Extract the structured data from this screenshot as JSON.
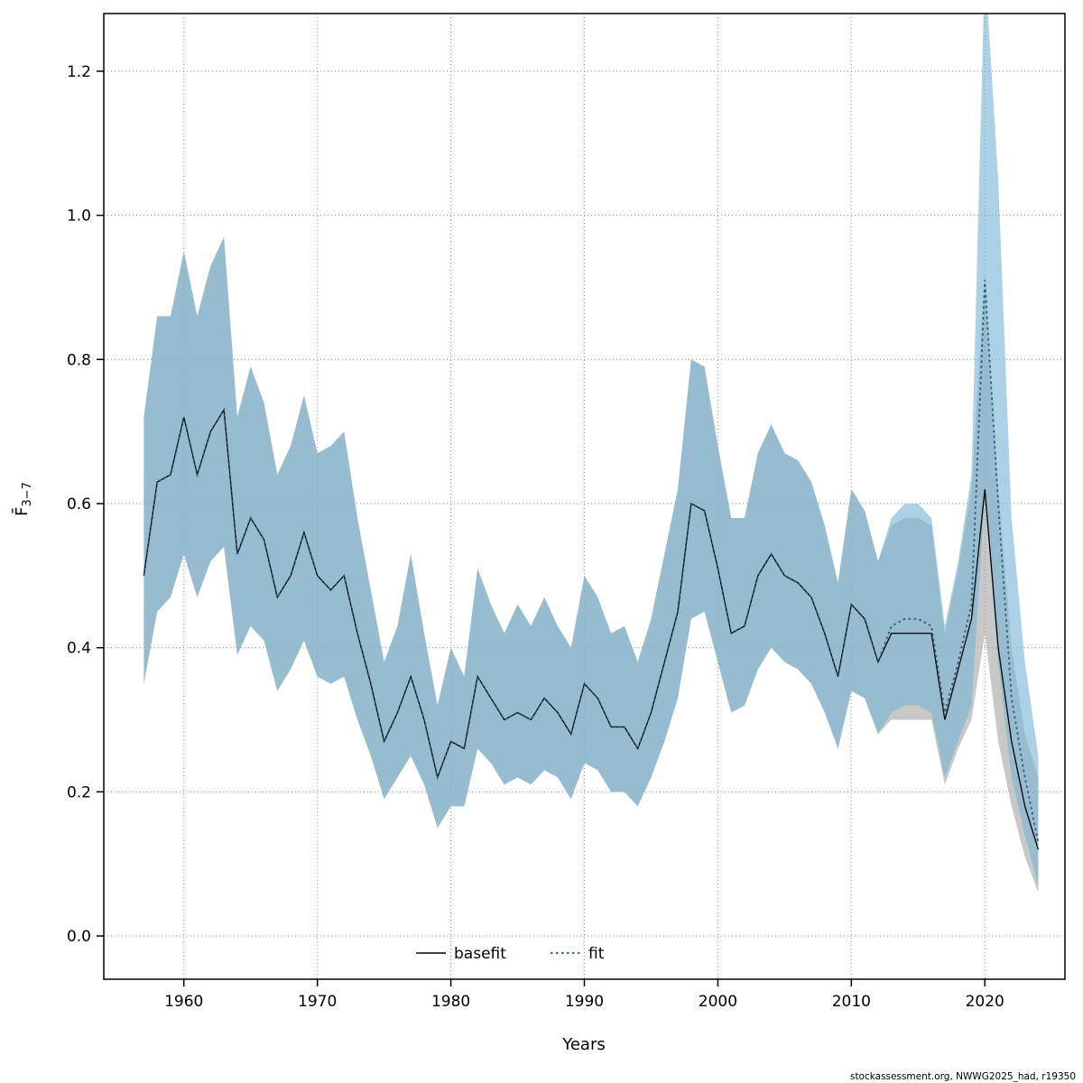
{
  "axes": {
    "xlabel": "Years",
    "ylabel_main": "F̄",
    "ylabel_sub": "3−7"
  },
  "legend": {
    "basefit_label": "basefit",
    "fit_label": "fit"
  },
  "footer": {
    "source": "stockassessment.org, NWWG2025_had, r19350"
  },
  "colors": {
    "fit_band": "#79b4d4",
    "base_band": "#9a9a9a",
    "fit_line": "#2a5876",
    "basefit_line": "#000000",
    "grid": "#8a8a8a",
    "box": "#000000"
  },
  "chart_data": {
    "type": "line",
    "title": "",
    "xlabel": "Years",
    "ylabel": "F_3-7 (mean fishing mortality ages 3-7)",
    "xlim": [
      1954,
      2026
    ],
    "ylim": [
      -0.06,
      1.28
    ],
    "xticks": [
      1960,
      1970,
      1980,
      1990,
      2000,
      2010,
      2020
    ],
    "yticks": [
      0.0,
      0.2,
      0.4,
      0.6,
      0.8,
      1.0,
      1.2
    ],
    "ytick_labels": [
      "0.0",
      "0.2",
      "0.4",
      "0.6",
      "0.8",
      "1.0",
      "1.2"
    ],
    "grid": true,
    "legend_position": "bottom-center-inside",
    "x": [
      1957,
      1958,
      1959,
      1960,
      1961,
      1962,
      1963,
      1964,
      1965,
      1966,
      1967,
      1968,
      1969,
      1970,
      1971,
      1972,
      1973,
      1974,
      1975,
      1976,
      1977,
      1978,
      1979,
      1980,
      1981,
      1982,
      1983,
      1984,
      1985,
      1986,
      1987,
      1988,
      1989,
      1990,
      1991,
      1992,
      1993,
      1994,
      1995,
      1996,
      1997,
      1998,
      1999,
      2000,
      2001,
      2002,
      2003,
      2004,
      2005,
      2006,
      2007,
      2008,
      2009,
      2010,
      2011,
      2012,
      2013,
      2014,
      2015,
      2016,
      2017,
      2018,
      2019,
      2020,
      2021,
      2022,
      2023,
      2024
    ],
    "series": [
      {
        "name": "fit",
        "style": "dotted",
        "values": [
          0.5,
          0.63,
          0.64,
          0.72,
          0.64,
          0.7,
          0.73,
          0.53,
          0.58,
          0.55,
          0.47,
          0.5,
          0.56,
          0.5,
          0.48,
          0.5,
          0.42,
          0.35,
          0.27,
          0.31,
          0.36,
          0.3,
          0.22,
          0.27,
          0.26,
          0.36,
          0.33,
          0.3,
          0.31,
          0.3,
          0.33,
          0.31,
          0.28,
          0.35,
          0.33,
          0.29,
          0.29,
          0.26,
          0.31,
          0.38,
          0.45,
          0.6,
          0.59,
          0.51,
          0.42,
          0.43,
          0.5,
          0.53,
          0.5,
          0.49,
          0.47,
          0.42,
          0.36,
          0.46,
          0.44,
          0.38,
          0.43,
          0.44,
          0.44,
          0.43,
          0.31,
          0.38,
          0.46,
          0.91,
          0.6,
          0.33,
          0.22,
          0.13
        ],
        "lower": [
          0.35,
          0.45,
          0.47,
          0.53,
          0.47,
          0.52,
          0.54,
          0.39,
          0.43,
          0.41,
          0.34,
          0.37,
          0.41,
          0.36,
          0.35,
          0.36,
          0.3,
          0.25,
          0.19,
          0.22,
          0.25,
          0.21,
          0.15,
          0.18,
          0.18,
          0.26,
          0.24,
          0.21,
          0.22,
          0.21,
          0.23,
          0.22,
          0.19,
          0.24,
          0.23,
          0.2,
          0.2,
          0.18,
          0.22,
          0.27,
          0.33,
          0.44,
          0.45,
          0.38,
          0.31,
          0.32,
          0.37,
          0.4,
          0.38,
          0.37,
          0.35,
          0.31,
          0.26,
          0.34,
          0.33,
          0.28,
          0.31,
          0.32,
          0.32,
          0.31,
          0.22,
          0.27,
          0.32,
          0.61,
          0.38,
          0.22,
          0.14,
          0.07
        ],
        "upper": [
          0.72,
          0.86,
          0.86,
          0.95,
          0.86,
          0.93,
          0.97,
          0.72,
          0.79,
          0.74,
          0.64,
          0.68,
          0.75,
          0.67,
          0.68,
          0.7,
          0.58,
          0.48,
          0.38,
          0.43,
          0.53,
          0.42,
          0.32,
          0.4,
          0.36,
          0.51,
          0.46,
          0.42,
          0.46,
          0.43,
          0.47,
          0.43,
          0.4,
          0.5,
          0.47,
          0.42,
          0.43,
          0.38,
          0.44,
          0.53,
          0.62,
          0.8,
          0.79,
          0.68,
          0.58,
          0.58,
          0.67,
          0.71,
          0.67,
          0.66,
          0.63,
          0.57,
          0.49,
          0.62,
          0.59,
          0.52,
          0.58,
          0.6,
          0.6,
          0.58,
          0.43,
          0.52,
          0.64,
          1.35,
          1.05,
          0.58,
          0.38,
          0.25
        ]
      },
      {
        "name": "basefit",
        "style": "solid",
        "values": [
          0.5,
          0.63,
          0.64,
          0.72,
          0.64,
          0.7,
          0.73,
          0.53,
          0.58,
          0.55,
          0.47,
          0.5,
          0.56,
          0.5,
          0.48,
          0.5,
          0.42,
          0.35,
          0.27,
          0.31,
          0.36,
          0.3,
          0.22,
          0.27,
          0.26,
          0.36,
          0.33,
          0.3,
          0.31,
          0.3,
          0.33,
          0.31,
          0.28,
          0.35,
          0.33,
          0.29,
          0.29,
          0.26,
          0.31,
          0.38,
          0.45,
          0.6,
          0.59,
          0.51,
          0.42,
          0.43,
          0.5,
          0.53,
          0.5,
          0.49,
          0.47,
          0.42,
          0.36,
          0.46,
          0.44,
          0.38,
          0.42,
          0.42,
          0.42,
          0.42,
          0.3,
          0.37,
          0.44,
          0.62,
          0.4,
          0.27,
          0.18,
          0.12
        ],
        "lower": [
          0.35,
          0.45,
          0.47,
          0.53,
          0.47,
          0.52,
          0.54,
          0.39,
          0.43,
          0.41,
          0.34,
          0.37,
          0.41,
          0.36,
          0.35,
          0.36,
          0.3,
          0.25,
          0.19,
          0.22,
          0.25,
          0.21,
          0.15,
          0.18,
          0.18,
          0.26,
          0.24,
          0.21,
          0.22,
          0.21,
          0.23,
          0.22,
          0.19,
          0.24,
          0.23,
          0.2,
          0.2,
          0.18,
          0.22,
          0.27,
          0.33,
          0.44,
          0.45,
          0.38,
          0.31,
          0.32,
          0.37,
          0.4,
          0.38,
          0.37,
          0.35,
          0.31,
          0.26,
          0.34,
          0.33,
          0.28,
          0.3,
          0.3,
          0.3,
          0.3,
          0.21,
          0.26,
          0.3,
          0.42,
          0.27,
          0.18,
          0.11,
          0.06
        ],
        "upper": [
          0.72,
          0.86,
          0.86,
          0.95,
          0.86,
          0.93,
          0.97,
          0.72,
          0.79,
          0.74,
          0.64,
          0.68,
          0.75,
          0.67,
          0.68,
          0.7,
          0.58,
          0.48,
          0.38,
          0.43,
          0.53,
          0.42,
          0.32,
          0.4,
          0.36,
          0.51,
          0.46,
          0.42,
          0.46,
          0.43,
          0.47,
          0.43,
          0.4,
          0.5,
          0.47,
          0.42,
          0.43,
          0.38,
          0.44,
          0.53,
          0.62,
          0.8,
          0.79,
          0.68,
          0.58,
          0.58,
          0.67,
          0.71,
          0.67,
          0.66,
          0.63,
          0.57,
          0.49,
          0.62,
          0.59,
          0.52,
          0.57,
          0.58,
          0.58,
          0.57,
          0.42,
          0.51,
          0.62,
          0.92,
          0.62,
          0.4,
          0.28,
          0.22
        ]
      }
    ]
  }
}
